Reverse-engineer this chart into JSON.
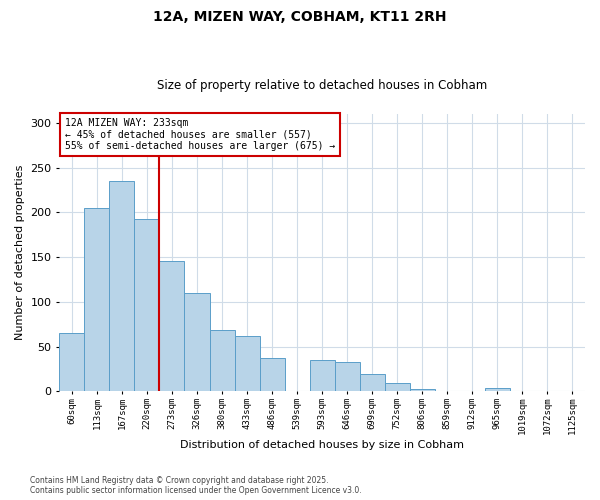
{
  "title": "12A, MIZEN WAY, COBHAM, KT11 2RH",
  "subtitle": "Size of property relative to detached houses in Cobham",
  "xlabel": "Distribution of detached houses by size in Cobham",
  "ylabel": "Number of detached properties",
  "bar_color": "#b8d4e8",
  "bar_edge_color": "#5a9ec9",
  "categories": [
    "60sqm",
    "113sqm",
    "167sqm",
    "220sqm",
    "273sqm",
    "326sqm",
    "380sqm",
    "433sqm",
    "486sqm",
    "539sqm",
    "593sqm",
    "646sqm",
    "699sqm",
    "752sqm",
    "806sqm",
    "859sqm",
    "912sqm",
    "965sqm",
    "1019sqm",
    "1072sqm",
    "1125sqm"
  ],
  "values": [
    65,
    205,
    235,
    193,
    146,
    110,
    68,
    62,
    37,
    0,
    35,
    33,
    19,
    9,
    3,
    0,
    0,
    4,
    0,
    0,
    0
  ],
  "ylim": [
    0,
    310
  ],
  "yticks": [
    0,
    50,
    100,
    150,
    200,
    250,
    300
  ],
  "vline_index": 3.5,
  "vline_color": "#cc0000",
  "annotation_text": "12A MIZEN WAY: 233sqm\n← 45% of detached houses are smaller (557)\n55% of semi-detached houses are larger (675) →",
  "annotation_box_color": "#ffffff",
  "annotation_border_color": "#cc0000",
  "footer_line1": "Contains HM Land Registry data © Crown copyright and database right 2025.",
  "footer_line2": "Contains public sector information licensed under the Open Government Licence v3.0.",
  "background_color": "#ffffff",
  "grid_color": "#d0dce8"
}
